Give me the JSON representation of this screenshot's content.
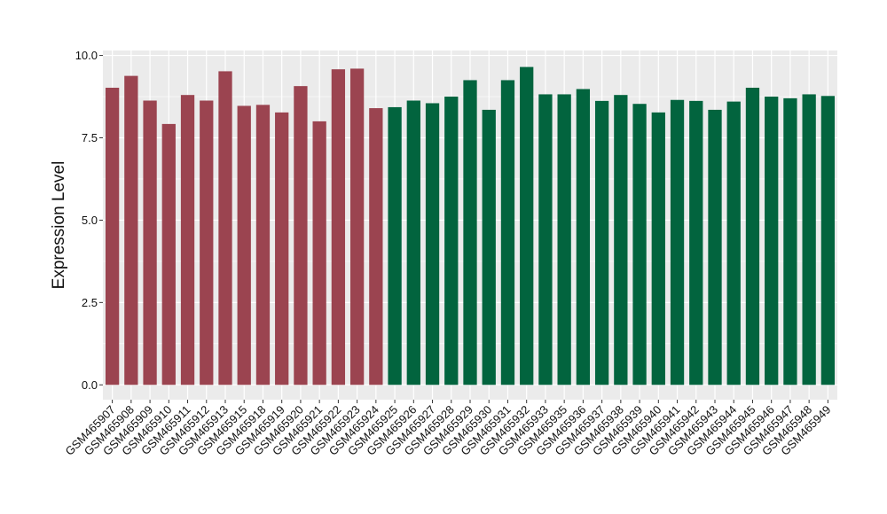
{
  "chart_data": {
    "type": "bar",
    "title": "",
    "xlabel": "",
    "ylabel": "Expression Level",
    "ylim": [
      -0.45,
      10.15
    ],
    "yticks": [
      0.0,
      2.5,
      5.0,
      7.5,
      10.0
    ],
    "ytick_labels": [
      "0.0",
      "2.5",
      "5.0",
      "7.5",
      "10.0"
    ],
    "grid": true,
    "legend": "none",
    "colors": {
      "group1": "#9b4450",
      "group2": "#02643e",
      "panel": "#ebebeb",
      "grid": "#ffffff"
    },
    "categories": [
      "GSM465907",
      "GSM465908",
      "GSM465909",
      "GSM465910",
      "GSM465911",
      "GSM465912",
      "GSM465913",
      "GSM465915",
      "GSM465918",
      "GSM465919",
      "GSM465920",
      "GSM465921",
      "GSM465922",
      "GSM465923",
      "GSM465924",
      "GSM465925",
      "GSM465926",
      "GSM465927",
      "GSM465928",
      "GSM465929",
      "GSM465930",
      "GSM465931",
      "GSM465932",
      "GSM465933",
      "GSM465935",
      "GSM465936",
      "GSM465937",
      "GSM465938",
      "GSM465939",
      "GSM465940",
      "GSM465941",
      "GSM465942",
      "GSM465943",
      "GSM465944",
      "GSM465945",
      "GSM465946",
      "GSM465947",
      "GSM465948",
      "GSM465949"
    ],
    "values": [
      9.02,
      9.38,
      8.63,
      7.92,
      8.8,
      8.63,
      9.52,
      8.47,
      8.5,
      8.27,
      9.07,
      8.0,
      9.58,
      9.6,
      8.4,
      8.43,
      8.63,
      8.55,
      8.75,
      9.25,
      8.35,
      9.25,
      9.65,
      8.82,
      8.82,
      8.98,
      8.62,
      8.8,
      8.53,
      8.27,
      8.65,
      8.62,
      8.35,
      8.6,
      9.02,
      8.75,
      8.7,
      8.82,
      8.77
    ],
    "groups": [
      1,
      1,
      1,
      1,
      1,
      1,
      1,
      1,
      1,
      1,
      1,
      1,
      1,
      1,
      1,
      2,
      2,
      2,
      2,
      2,
      2,
      2,
      2,
      2,
      2,
      2,
      2,
      2,
      2,
      2,
      2,
      2,
      2,
      2,
      2,
      2,
      2,
      2,
      2
    ]
  }
}
